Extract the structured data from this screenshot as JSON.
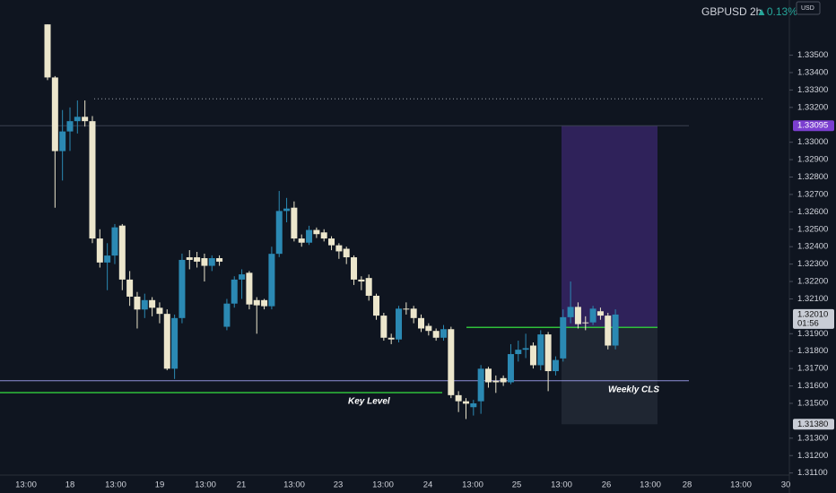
{
  "chart_data": {
    "type": "candlestick",
    "symbol": "GBPUSD 2h",
    "change": "▲0.13%",
    "currency": "USD",
    "up_color": "#2b89b3",
    "down_color": "#ece6cc",
    "open": [
      1.33677,
      1.33372,
      1.32949,
      1.33062,
      1.33121,
      1.33146,
      1.33121,
      1.32447,
      1.32309,
      1.32349,
      1.32521,
      1.32211,
      1.32113,
      1.32039,
      1.32093,
      1.32049,
      1.32014,
      1.31699,
      1.3199,
      1.32339,
      1.32339,
      1.32334,
      1.3229,
      1.32334,
      1.3194,
      1.32073,
      1.32211,
      1.3225,
      1.32093,
      1.32093,
      1.32058,
      1.32359,
      1.32605,
      1.32624,
      1.32447,
      1.32423,
      1.32496,
      1.32482,
      1.32447,
      1.32408,
      1.32388,
      1.32339,
      1.32211,
      1.3222,
      1.32118,
      1.32004,
      1.31877,
      1.31867,
      1.32044,
      1.32044,
      1.3199,
      1.31945,
      1.31916,
      1.31877,
      1.31926,
      1.31547,
      1.31512,
      1.31478,
      1.31512,
      1.31699,
      1.3163,
      1.31645,
      1.31621,
      1.31783,
      1.31808,
      1.31832,
      1.31719,
      1.31896,
      1.31685,
      1.31758,
      1.31995,
      1.32054,
      1.31965,
      1.31965,
      1.32029,
      1.32004,
      1.31832
    ],
    "high": [
      1.33677,
      1.3338,
      1.33185,
      1.332,
      1.3324,
      1.3324,
      1.3315,
      1.325,
      1.3242,
      1.3253,
      1.3253,
      1.3226,
      1.3214,
      1.3213,
      1.3211,
      1.3208,
      1.3204,
      1.3201,
      1.3236,
      1.3238,
      1.3237,
      1.3236,
      1.3235,
      1.3235,
      1.321,
      1.3223,
      1.3227,
      1.3226,
      1.3211,
      1.321,
      1.324,
      1.3272,
      1.3268,
      1.3266,
      1.3247,
      1.3252,
      1.3251,
      1.325,
      1.3246,
      1.3242,
      1.324,
      1.3235,
      1.3223,
      1.3224,
      1.3213,
      1.3202,
      1.319,
      1.3206,
      1.3208,
      1.3206,
      1.3201,
      1.3196,
      1.3193,
      1.3195,
      1.3194,
      1.3157,
      1.3153,
      1.3152,
      1.3172,
      1.3171,
      1.3166,
      1.3166,
      1.3184,
      1.3186,
      1.319,
      1.3185,
      1.3192,
      1.3191,
      1.3177,
      1.3204,
      1.322,
      1.3208,
      1.32,
      1.3206,
      1.3205,
      1.3202,
      1.3204
    ],
    "low": [
      1.33357,
      1.32624,
      1.3278,
      1.3295,
      1.3305,
      1.3309,
      1.3242,
      1.3228,
      1.3215,
      1.323,
      1.3215,
      1.3206,
      1.3193,
      1.3199,
      1.32,
      1.3196,
      1.3169,
      1.3164,
      1.3196,
      1.3227,
      1.3228,
      1.322,
      1.3226,
      1.3229,
      1.3192,
      1.3205,
      1.321,
      1.3204,
      1.319,
      1.3204,
      1.3204,
      1.3234,
      1.3254,
      1.3243,
      1.324,
      1.3241,
      1.3245,
      1.3243,
      1.3238,
      1.3233,
      1.323,
      1.3218,
      1.3215,
      1.3209,
      1.3198,
      1.3186,
      1.3184,
      1.3185,
      1.3201,
      1.3196,
      1.3191,
      1.3189,
      1.3186,
      1.3186,
      1.3153,
      1.3145,
      1.3141,
      1.3143,
      1.3144,
      1.3159,
      1.3156,
      1.316,
      1.3161,
      1.3174,
      1.3176,
      1.317,
      1.3169,
      1.3157,
      1.3166,
      1.3174,
      1.3196,
      1.3193,
      1.3192,
      1.3195,
      1.3198,
      1.3181,
      1.3181
    ],
    "close": [
      1.33372,
      1.32949,
      1.33062,
      1.33121,
      1.33146,
      1.33121,
      1.32447,
      1.32309,
      1.32349,
      1.32511,
      1.32211,
      1.32113,
      1.32039,
      1.32093,
      1.32049,
      1.32014,
      1.31699,
      1.3199,
      1.32324,
      1.32324,
      1.32314,
      1.3229,
      1.32334,
      1.32314,
      1.32073,
      1.32211,
      1.32241,
      1.32068,
      1.32063,
      1.32058,
      1.32359,
      1.32605,
      1.32619,
      1.32447,
      1.32423,
      1.32496,
      1.32472,
      1.32447,
      1.32408,
      1.32373,
      1.32339,
      1.32211,
      1.322,
      1.32118,
      1.32004,
      1.31877,
      1.31867,
      1.32044,
      1.32039,
      1.3199,
      1.3193,
      1.31916,
      1.31877,
      1.31926,
      1.31547,
      1.31512,
      1.31498,
      1.315,
      1.31699,
      1.31621,
      1.31621,
      1.31621,
      1.31783,
      1.31808,
      1.31817,
      1.31719,
      1.31896,
      1.31685,
      1.31749,
      1.31995,
      1.32054,
      1.31955,
      1.3196,
      1.32044,
      1.32004,
      1.31832,
      1.3201
    ],
    "ylim": [
      1.30985,
      1.33817
    ],
    "yticks": [
      {
        "value": 1.335,
        "label": "1.33500"
      },
      {
        "value": 1.334,
        "label": "1.33400"
      },
      {
        "value": 1.333,
        "label": "1.33300"
      },
      {
        "value": 1.332,
        "label": "1.33200"
      },
      {
        "value": 1.33,
        "label": "1.33000"
      },
      {
        "value": 1.329,
        "label": "1.32900"
      },
      {
        "value": 1.328,
        "label": "1.32800"
      },
      {
        "value": 1.327,
        "label": "1.32700"
      },
      {
        "value": 1.326,
        "label": "1.32600"
      },
      {
        "value": 1.325,
        "label": "1.32500"
      },
      {
        "value": 1.324,
        "label": "1.32400"
      },
      {
        "value": 1.323,
        "label": "1.32300"
      },
      {
        "value": 1.322,
        "label": "1.32200"
      },
      {
        "value": 1.321,
        "label": "1.32100"
      },
      {
        "value": 1.319,
        "label": "1.31900"
      },
      {
        "value": 1.318,
        "label": "1.31800"
      },
      {
        "value": 1.317,
        "label": "1.31700"
      },
      {
        "value": 1.316,
        "label": "1.31600"
      },
      {
        "value": 1.315,
        "label": "1.31500"
      },
      {
        "value": 1.313,
        "label": "1.31300"
      },
      {
        "value": 1.312,
        "label": "1.31200"
      },
      {
        "value": 1.311,
        "label": "1.31100"
      }
    ],
    "x_labels": [
      "13:00",
      "18",
      "13:00",
      "19",
      "13:00",
      "21",
      "13:00",
      "23",
      "13:00",
      "24",
      "13:00",
      "25",
      "13:00",
      "26",
      "13:00",
      "28",
      "13:00",
      "30"
    ],
    "lines": [
      {
        "value": 1.33249,
        "color": "#9aa0aa",
        "style": "dotted"
      },
      {
        "value": 1.33095,
        "color": "#3a4150",
        "style": "solid"
      },
      {
        "value": 1.3163,
        "color": "#8f8fd8",
        "style": "solid",
        "label": "Weekly CLS"
      },
      {
        "value": 1.31562,
        "color": "#2fbf3a",
        "style": "solid",
        "label": "Key Level"
      },
      {
        "value": 1.31936,
        "color": "#2fbf3a",
        "style": "solid"
      }
    ],
    "position": {
      "target": 1.33095,
      "entry": 1.31936,
      "stop": 1.3138
    },
    "price_badges": [
      {
        "value": 1.33095,
        "color": "#7b3fd0"
      },
      {
        "value": 1.3201,
        "label": "1.32010",
        "countdown": "01:56",
        "color": "#c9cdd6"
      },
      {
        "value": 1.3138,
        "label": "1.31380",
        "color": "#c9cdd6"
      }
    ]
  }
}
